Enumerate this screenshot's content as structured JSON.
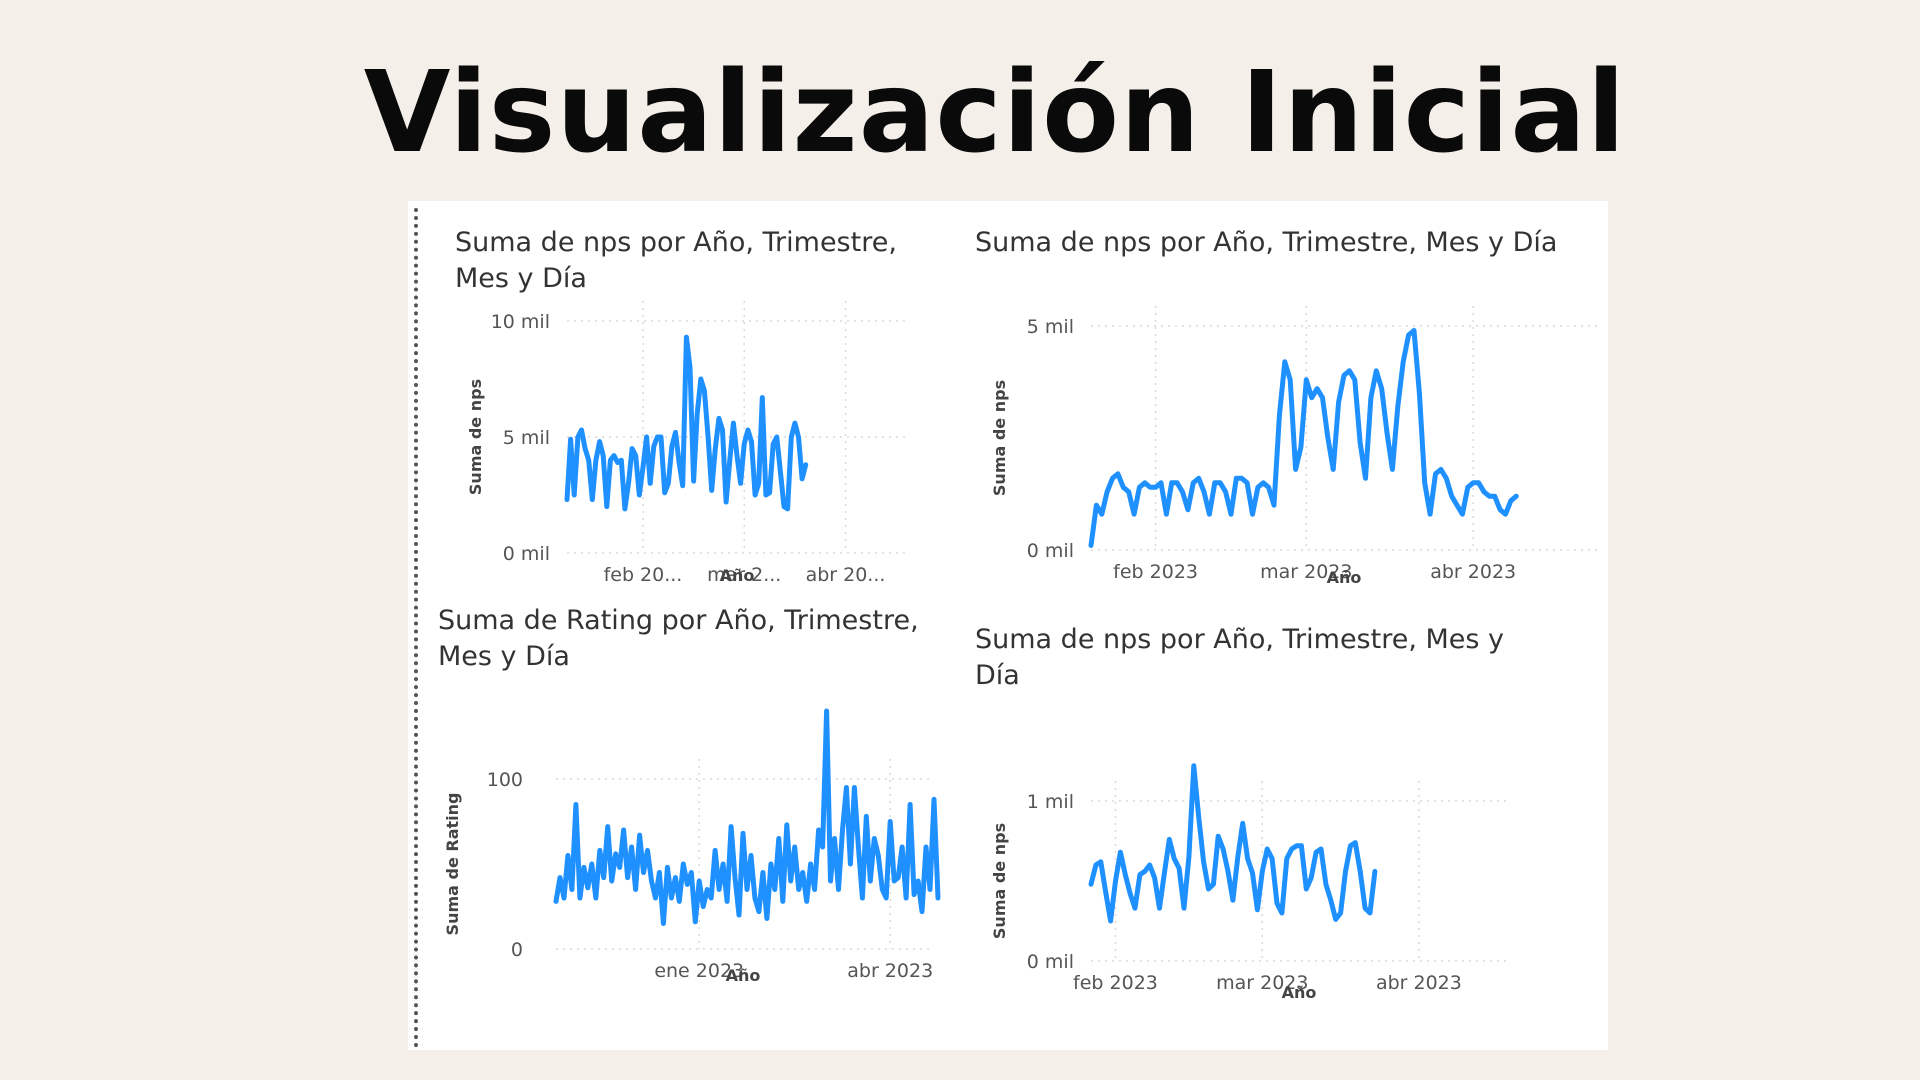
{
  "page": {
    "title": "Visualización Inicial"
  },
  "chart_data": [
    {
      "type": "line",
      "title": "Suma de nps por Año, Trimestre, Mes y Día",
      "xlabel": "Año",
      "ylabel": "Suma de nps",
      "yticks": [
        "0 mil",
        "5 mil",
        "10 mil"
      ],
      "ylim": [
        0,
        10000
      ],
      "xticks": [
        "feb 20...",
        "mar 2...",
        "abr 20..."
      ],
      "xtick_positions": [
        21,
        49,
        77
      ],
      "xlim": [
        0,
        94
      ],
      "series": [
        {
          "values": [
            2300,
            4900,
            2500,
            5000,
            5300,
            4500,
            4000,
            2300,
            4000,
            4800,
            4200,
            2000,
            4000,
            4200,
            3900,
            4000,
            1900,
            3000,
            4500,
            4200,
            2500,
            3700,
            5000,
            3000,
            4600,
            5000,
            5000,
            2600,
            3000,
            4600,
            5200,
            3900,
            2900,
            9300,
            8000,
            3100,
            6000,
            7500,
            7000,
            5000,
            2700,
            4500,
            5800,
            5300,
            2200,
            4000,
            5600,
            4200,
            3000,
            4700,
            5300,
            4800,
            2500,
            3000,
            6700,
            2500,
            2600,
            4700,
            5000,
            3500,
            2000,
            1900,
            5000,
            5600,
            5000,
            3200,
            3800
          ]
        }
      ]
    },
    {
      "type": "line",
      "title": "Suma de nps por Año, Trimestre, Mes y Día",
      "xlabel": "Año",
      "ylabel": "Suma de nps",
      "yticks": [
        "0 mil",
        "5 mil"
      ],
      "ylim": [
        0,
        5000
      ],
      "xticks": [
        "feb 2023",
        "mar 2023",
        "abr 2023"
      ],
      "xtick_positions": [
        12,
        40,
        71
      ],
      "xlim": [
        0,
        94
      ],
      "series": [
        {
          "values": [
            100,
            1000,
            800,
            1300,
            1600,
            1700,
            1400,
            1300,
            800,
            1400,
            1500,
            1400,
            1400,
            1500,
            800,
            1500,
            1500,
            1300,
            900,
            1500,
            1600,
            1300,
            800,
            1500,
            1500,
            1300,
            800,
            1600,
            1600,
            1500,
            800,
            1400,
            1500,
            1400,
            1000,
            3000,
            4200,
            3800,
            1800,
            2300,
            3800,
            3400,
            3600,
            3400,
            2500,
            1800,
            3300,
            3900,
            4000,
            3800,
            2400,
            1600,
            3400,
            4000,
            3600,
            2600,
            1800,
            3200,
            4200,
            4800,
            4900,
            3500,
            1500,
            800,
            1700,
            1800,
            1600,
            1200,
            1000,
            800,
            1400,
            1500,
            1500,
            1300,
            1200,
            1200,
            900,
            800,
            1100,
            1200
          ]
        }
      ]
    },
    {
      "type": "line",
      "title": "Suma de Rating por Año, Trimestre, Mes y Día",
      "xlabel": "Año",
      "ylabel": "Suma de Rating",
      "yticks": [
        "0",
        "100"
      ],
      "ylim": [
        0,
        100
      ],
      "xticks": [
        "ene 2023",
        "abr 2023"
      ],
      "xtick_positions": [
        36,
        84
      ],
      "xlim": [
        0,
        94
      ],
      "series": [
        {
          "values": [
            28,
            42,
            30,
            55,
            35,
            85,
            30,
            48,
            36,
            50,
            30,
            58,
            42,
            72,
            40,
            56,
            48,
            70,
            42,
            60,
            35,
            67,
            45,
            58,
            40,
            30,
            45,
            15,
            48,
            30,
            42,
            28,
            50,
            38,
            45,
            16,
            40,
            25,
            35,
            30,
            58,
            35,
            50,
            28,
            72,
            42,
            20,
            68,
            35,
            55,
            30,
            22,
            45,
            18,
            50,
            35,
            65,
            28,
            73,
            40,
            60,
            35,
            45,
            28,
            50,
            35,
            70,
            60,
            140,
            40,
            65,
            35,
            70,
            95,
            50,
            95,
            60,
            30,
            78,
            40,
            65,
            55,
            35,
            30,
            75,
            40,
            42,
            60,
            30,
            85,
            32,
            40,
            22,
            60,
            35,
            88,
            30
          ]
        }
      ]
    },
    {
      "type": "line",
      "title": "Suma de nps por Año, Trimestre, Mes y Día",
      "xlabel": "Año",
      "ylabel": "Suma de nps",
      "yticks": [
        "0 mil",
        "1 mil"
      ],
      "ylim": [
        0,
        1000
      ],
      "xticks": [
        "feb 2023",
        "mar 2023",
        "abr 2023"
      ],
      "xtick_positions": [
        5,
        35,
        67
      ],
      "xlim": [
        0,
        85
      ],
      "series": [
        {
          "values": [
            480,
            600,
            620,
            430,
            250,
            500,
            680,
            540,
            420,
            330,
            540,
            560,
            600,
            520,
            330,
            550,
            760,
            640,
            580,
            330,
            650,
            1220,
            900,
            620,
            450,
            480,
            780,
            700,
            560,
            380,
            650,
            860,
            640,
            550,
            320,
            560,
            700,
            640,
            360,
            300,
            640,
            700,
            720,
            720,
            450,
            520,
            680,
            700,
            480,
            380,
            260,
            300,
            560,
            720,
            740,
            560,
            330,
            300,
            560
          ]
        }
      ]
    }
  ]
}
